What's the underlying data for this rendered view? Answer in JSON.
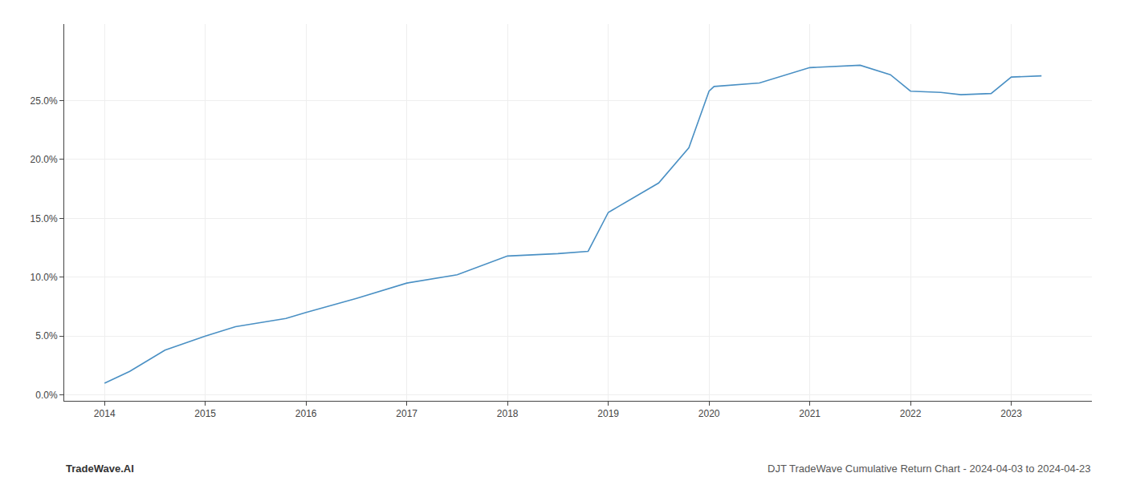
{
  "chart_data": {
    "type": "line",
    "title": "DJT TradeWave Cumulative Return Chart - 2024-04-03 to 2024-04-23",
    "annotations": [
      {
        "text": "TradeWave.AI"
      }
    ],
    "x": [
      2014.0,
      2014.25,
      2014.6,
      2015.0,
      2015.3,
      2015.8,
      2016.0,
      2016.5,
      2017.0,
      2017.5,
      2018.0,
      2018.5,
      2018.8,
      2019.0,
      2019.1,
      2019.5,
      2019.8,
      2020.0,
      2020.05,
      2020.5,
      2021.0,
      2021.5,
      2021.8,
      2022.0,
      2022.3,
      2022.5,
      2022.8,
      2023.0,
      2023.3
    ],
    "values": [
      0.01,
      0.02,
      0.038,
      0.05,
      0.058,
      0.065,
      0.07,
      0.082,
      0.095,
      0.102,
      0.118,
      0.12,
      0.122,
      0.155,
      0.16,
      0.18,
      0.21,
      0.258,
      0.262,
      0.265,
      0.278,
      0.28,
      0.272,
      0.258,
      0.257,
      0.255,
      0.256,
      0.27,
      0.271
    ],
    "color": "#4a90c4",
    "xlim": [
      2013.6,
      2023.8
    ],
    "ylim": [
      -0.005,
      0.315
    ],
    "xticks": [
      2014,
      2015,
      2016,
      2017,
      2018,
      2019,
      2020,
      2021,
      2022,
      2023
    ],
    "yticks": [
      {
        "value": 0.0,
        "label": "0.0%"
      },
      {
        "value": 0.05,
        "label": "5.0%"
      },
      {
        "value": 0.1,
        "label": "10.0%"
      },
      {
        "value": 0.15,
        "label": "15.0%"
      },
      {
        "value": 0.2,
        "label": "20.0%"
      },
      {
        "value": 0.25,
        "label": "25.0%"
      }
    ],
    "grid": true
  }
}
